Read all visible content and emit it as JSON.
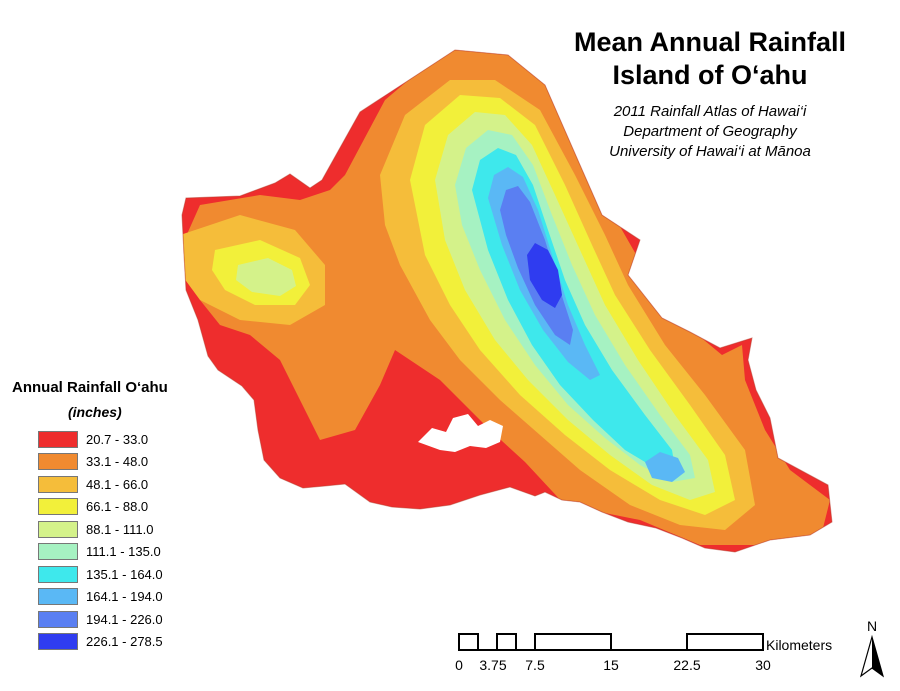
{
  "title": {
    "line1": "Mean Annual Rainfall",
    "line2": "Island of O‘ahu",
    "sub1": "2011 Rainfall Atlas of Hawai‘i",
    "sub2": "Department of Geography",
    "sub3": "University of Hawai‘i at Mānoa"
  },
  "legend": {
    "title": "Annual Rainfall O‘ahu",
    "units": "(inches)",
    "classes": [
      {
        "label": "20.7 - 33.0",
        "color": "#ee2d2d"
      },
      {
        "label": "33.1 - 48.0",
        "color": "#f08a30"
      },
      {
        "label": "48.1 - 66.0",
        "color": "#f5bd3a"
      },
      {
        "label": "66.1 - 88.0",
        "color": "#f2f03a"
      },
      {
        "label": "88.1 - 111.0",
        "color": "#d4f28a"
      },
      {
        "label": "111.1 - 135.0",
        "color": "#a6f2c2"
      },
      {
        "label": "135.1 - 164.0",
        "color": "#3ee8ec"
      },
      {
        "label": "164.1 - 194.0",
        "color": "#5ab8f5"
      },
      {
        "label": "194.1 - 226.0",
        "color": "#5a7ff2"
      },
      {
        "label": "226.1 - 278.5",
        "color": "#2f3cf0"
      }
    ]
  },
  "scale_bar": {
    "ticks": [
      "0",
      "3.75",
      "7.5",
      "15",
      "22.5",
      "30"
    ],
    "unit": "Kilometers"
  },
  "north_arrow": {
    "label": "N"
  }
}
